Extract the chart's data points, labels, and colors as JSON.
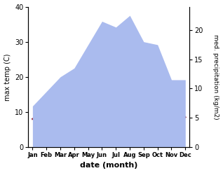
{
  "months": [
    "Jan",
    "Feb",
    "Mar",
    "Apr",
    "May",
    "Jun",
    "Jul",
    "Aug",
    "Sep",
    "Oct",
    "Nov",
    "Dec"
  ],
  "month_positions": [
    0,
    1,
    2,
    3,
    4,
    5,
    6,
    7,
    8,
    9,
    10,
    11
  ],
  "temp_max": [
    8.0,
    9.5,
    13.5,
    17.5,
    21.5,
    25.5,
    28.0,
    29.5,
    25.0,
    19.0,
    12.5,
    8.5
  ],
  "precip": [
    7.0,
    9.5,
    12.0,
    13.5,
    17.5,
    21.5,
    20.5,
    22.5,
    18.0,
    17.5,
    11.5,
    11.5
  ],
  "temp_color": "#993344",
  "precip_fill_color": "#aabbee",
  "temp_ylim": [
    0,
    40
  ],
  "precip_ylim": [
    0,
    24
  ],
  "precip_yticks": [
    0,
    5,
    10,
    15,
    20
  ],
  "temp_yticks": [
    0,
    10,
    20,
    30,
    40
  ],
  "xlabel": "date (month)",
  "ylabel_left": "max temp (C)",
  "ylabel_right": "med. precipitation (kg/m2)",
  "line_width": 1.8,
  "bg_color": "#ffffff"
}
